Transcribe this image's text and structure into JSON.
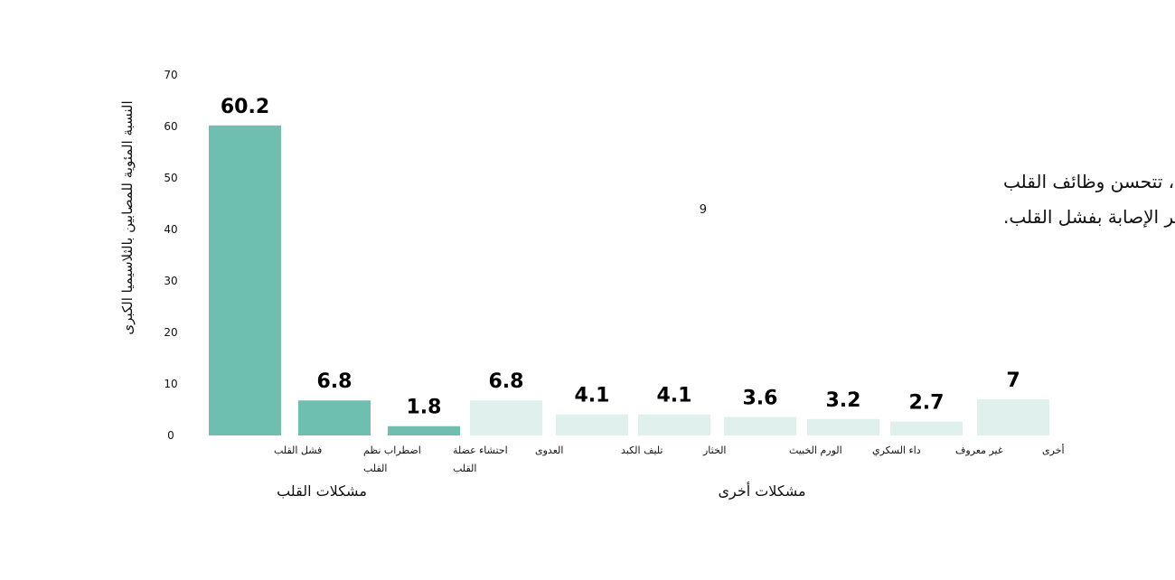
{
  "chart_data": {
    "type": "bar",
    "ylabel": "النسبة المئوية للمصابين بالثلاسيميا الكبرى",
    "ylim": [
      0,
      70
    ],
    "yticks": [
      0,
      10,
      20,
      30,
      40,
      50,
      60,
      70
    ],
    "categories": [
      "فشل القلب",
      "اضطراب نظم القلب",
      "احتشاء عضلة القلب",
      "العدوى",
      "تليف الكبد",
      "الخثار",
      "الورم الخبيث",
      "داء السكري",
      "غير معروف",
      "أخرى"
    ],
    "category_lines": [
      [
        "فشل القلب"
      ],
      [
        "اضطراب نظم",
        "القلب"
      ],
      [
        "احتشاء عضلة",
        "القلب"
      ],
      [
        "العدوى"
      ],
      [
        "تليف الكبد"
      ],
      [
        "الخثار"
      ],
      [
        "الورم الخبيث"
      ],
      [
        "داء السكري"
      ],
      [
        "غير معروف"
      ],
      [
        "أخرى"
      ]
    ],
    "values": [
      60.2,
      6.8,
      1.8,
      6.8,
      4.1,
      4.1,
      3.6,
      3.2,
      2.7,
      7
    ],
    "value_labels": [
      "60.2",
      "6.8",
      "1.8",
      "6.8",
      "4.1",
      "4.1",
      "3.6",
      "3.2",
      "2.7",
      "7"
    ],
    "groups": [
      {
        "label": "مشكلات القلب",
        "from": 0,
        "to": 2
      },
      {
        "label": "مشكلات أخرى",
        "from": 3,
        "to": 9
      }
    ],
    "colors": {
      "heart": "#6fbfb0",
      "other": "#e0f1ed"
    },
    "annotation": {
      "line1": "عند إزالة الحديد من القلب، تتحسن وظائف القلب",
      "line2": "وينخفض خطر الإصابة بفشل القلب.",
      "superscript": "9"
    }
  }
}
